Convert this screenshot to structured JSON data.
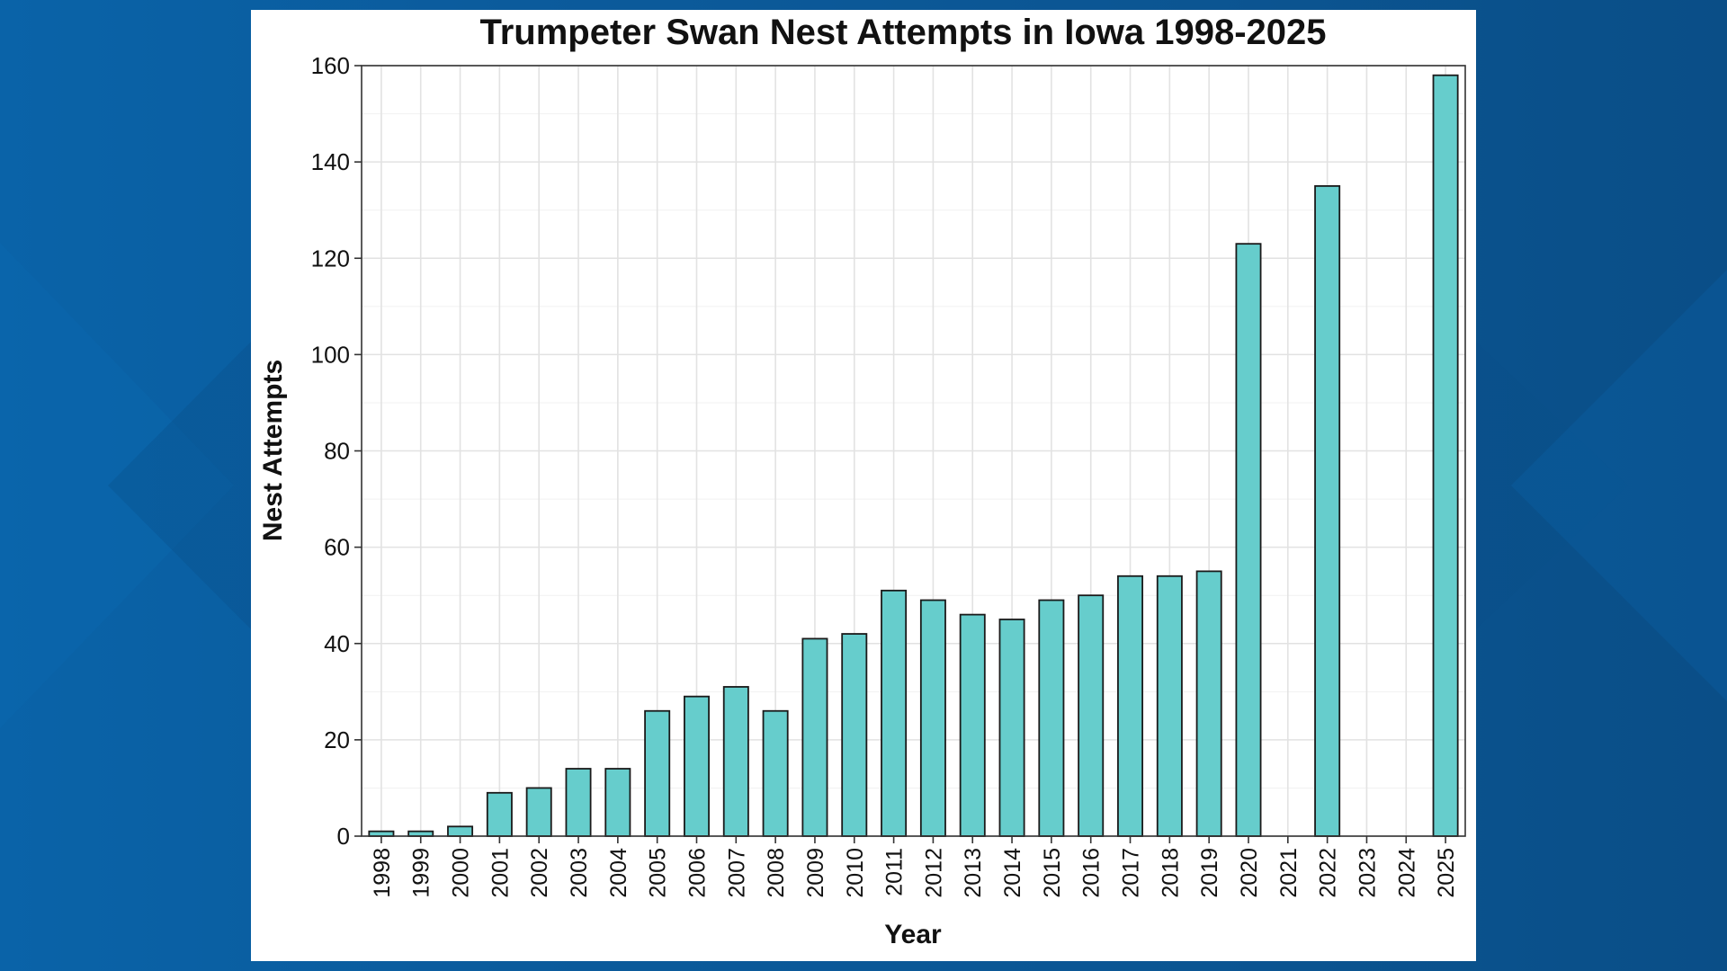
{
  "chart_data": {
    "type": "bar",
    "title": "Trumpeter Swan Nest Attempts in Iowa 1998-2025",
    "xlabel": "Year",
    "ylabel": "Nest Attempts",
    "categories": [
      "1998",
      "1999",
      "2000",
      "2001",
      "2002",
      "2003",
      "2004",
      "2005",
      "2006",
      "2007",
      "2008",
      "2009",
      "2010",
      "2011",
      "2012",
      "2013",
      "2014",
      "2015",
      "2016",
      "2017",
      "2018",
      "2019",
      "2020",
      "2021",
      "2022",
      "2023",
      "2024",
      "2025"
    ],
    "values": [
      1,
      1,
      2,
      9,
      10,
      14,
      14,
      26,
      29,
      31,
      26,
      41,
      42,
      51,
      49,
      46,
      45,
      49,
      50,
      54,
      54,
      55,
      123,
      null,
      135,
      null,
      null,
      158
    ],
    "ylim": [
      0,
      160
    ],
    "yticks": [
      0,
      20,
      40,
      60,
      80,
      100,
      120,
      140,
      160
    ],
    "grid": true,
    "bar_color": "#66cdcc",
    "bar_stroke": "#1a1a1a",
    "background_color": "#0b5a97"
  }
}
